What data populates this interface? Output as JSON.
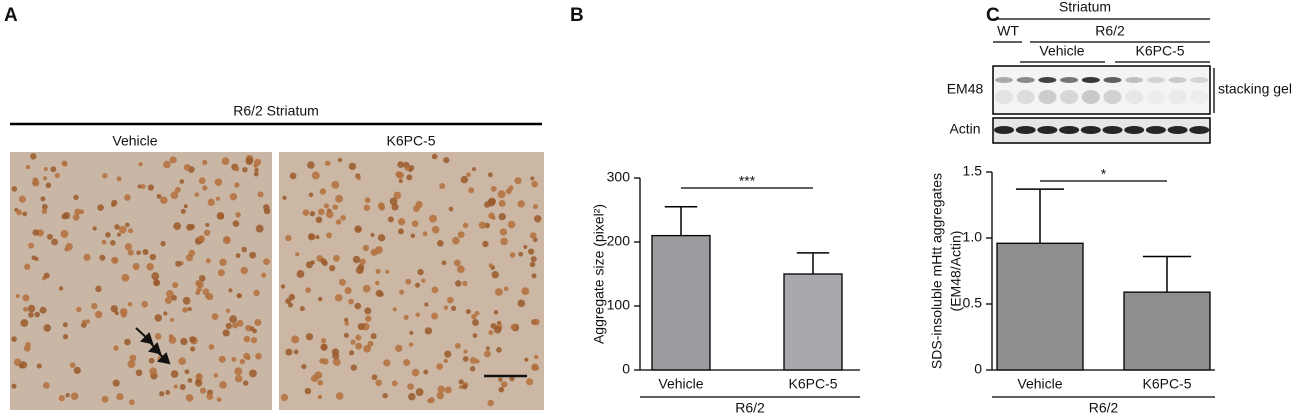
{
  "panel_labels": {
    "a": "A",
    "b": "B",
    "c": "C"
  },
  "panel_a": {
    "title": "R6/2 Striatum",
    "images": [
      "Vehicle",
      "K6PC-5"
    ]
  },
  "panel_c_blot": {
    "tissue": "Striatum",
    "genotypes": [
      "WT",
      "R6/2"
    ],
    "treatments": [
      "Vehicle",
      "K6PC-5"
    ],
    "rows": [
      "EM48",
      "Actin"
    ],
    "annotation": "stacking gel"
  },
  "chart_data": [
    {
      "type": "bar",
      "ylabel": [
        "Aggregate size (pixel²)"
      ],
      "categories": [
        "Vehicle",
        "K6PC-5"
      ],
      "values": [
        210,
        150
      ],
      "errors": [
        45,
        33
      ],
      "colors": [
        "#9c9ca0",
        "#a8a8ae"
      ],
      "ylim": [
        0,
        300
      ],
      "yticks": [
        0,
        100,
        200,
        300
      ],
      "significance": "***",
      "group_label": "R6/2"
    },
    {
      "type": "bar",
      "ylabel": [
        "SDS-insoluble mHtt aggregates",
        "(EM48/Actin)"
      ],
      "categories": [
        "Vehicle",
        "K6PC-5"
      ],
      "values": [
        0.96,
        0.59
      ],
      "errors": [
        0.41,
        0.27
      ],
      "colors": [
        "#8e8e8e",
        "#8e8e8e"
      ],
      "ylim": [
        0,
        1.5
      ],
      "yticks": [
        0,
        0.5,
        {
          "value": 1.0,
          "label": "1.0"
        },
        1.5
      ],
      "significance": "*",
      "group_label": "R6/2"
    }
  ]
}
